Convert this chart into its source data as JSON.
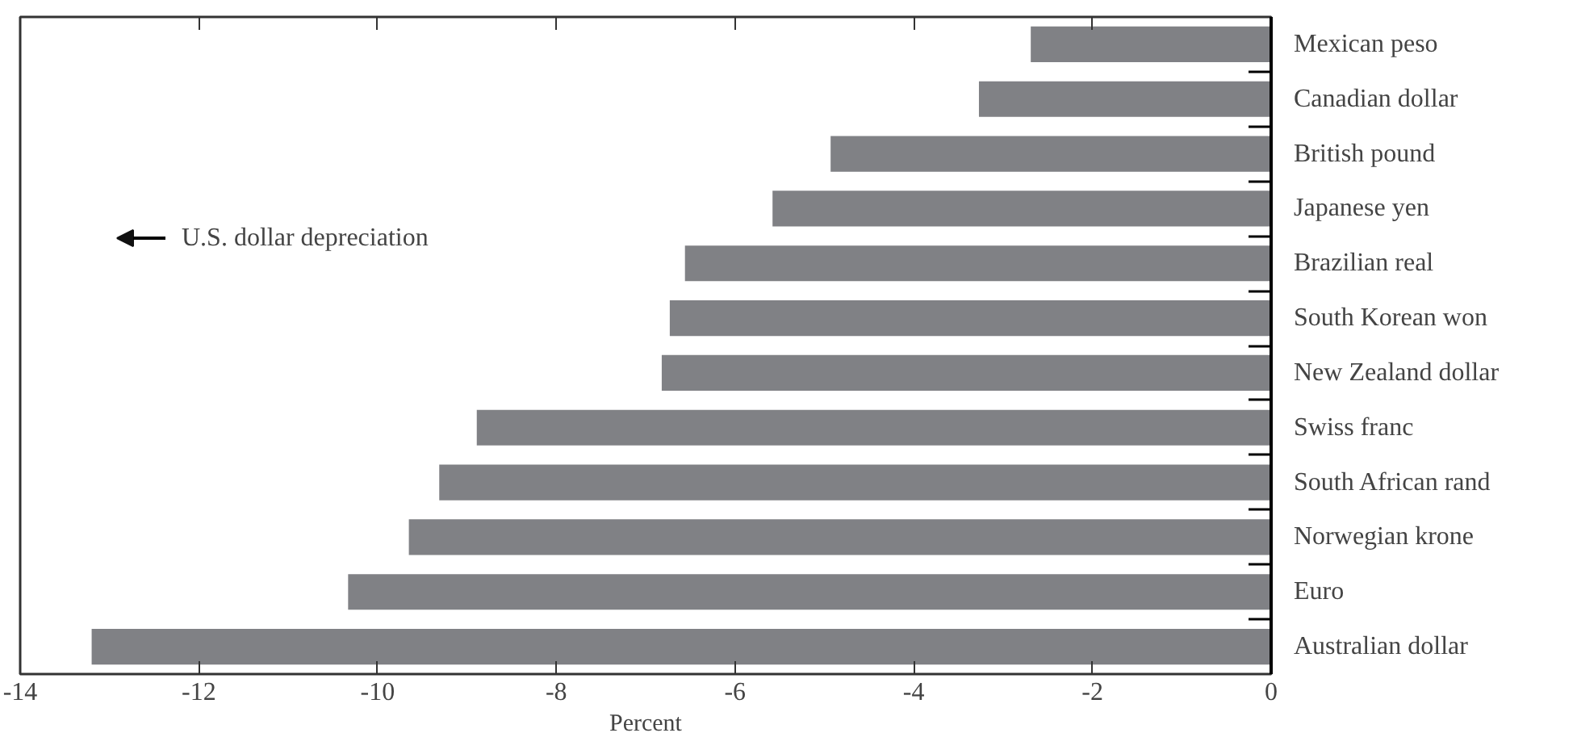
{
  "chart_data": {
    "type": "bar",
    "orientation": "horizontal",
    "xlabel": "Percent",
    "categories": [
      "Mexican peso",
      "Canadian dollar",
      "British pound",
      "Japanese yen",
      "Brazilian real",
      "South Korean won",
      "New Zealand dollar",
      "Swiss franc",
      "South African rand",
      "Norwegian krone",
      "Euro",
      "Australian dollar"
    ],
    "values": [
      -2.69,
      -3.27,
      -4.93,
      -5.58,
      -6.56,
      -6.73,
      -6.82,
      -8.89,
      -9.31,
      -9.65,
      -10.33,
      -13.2
    ],
    "color": "#808185",
    "xlim": [
      -14,
      0
    ],
    "xticks": [
      -14,
      -12,
      -10,
      -8,
      -6,
      -4,
      -2,
      0
    ],
    "annotations": [
      "U.S. dollar depreciation"
    ]
  }
}
